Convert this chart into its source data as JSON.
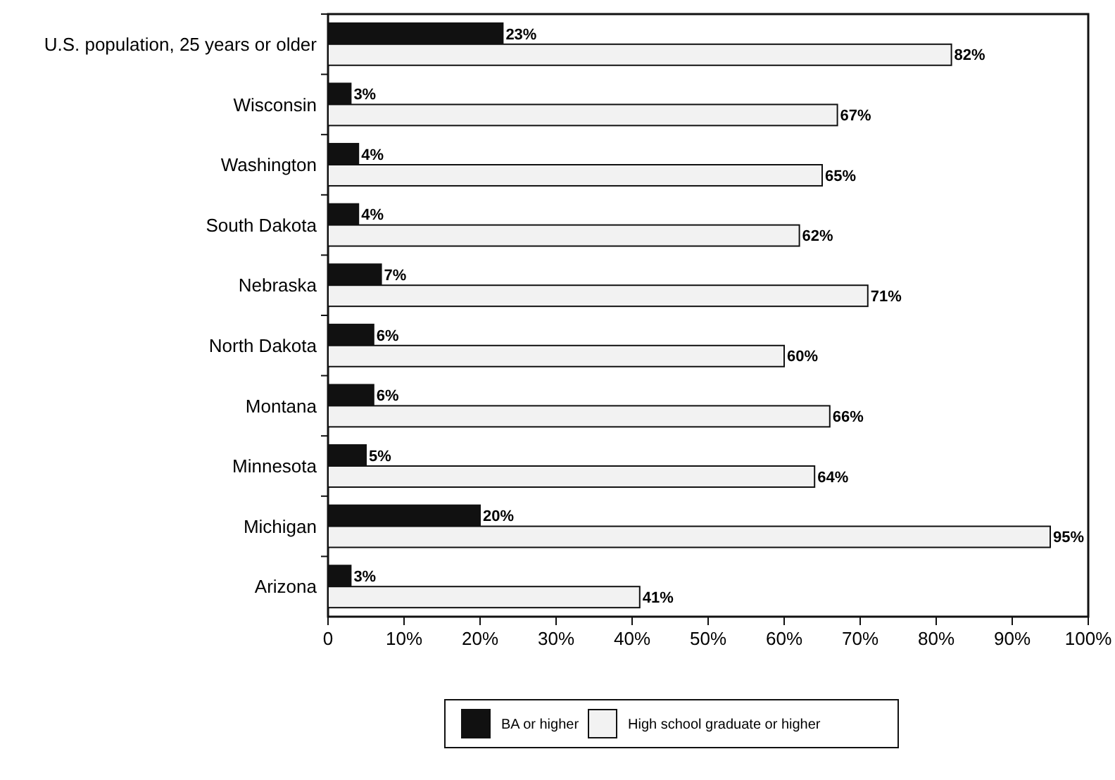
{
  "chart_data": {
    "type": "bar",
    "orientation": "horizontal",
    "categories": [
      "U.S. population, 25 years or older",
      "Wisconsin",
      "Washington",
      "South Dakota",
      "Nebraska",
      "North Dakota",
      "Montana",
      "Minnesota",
      "Michigan",
      "Arizona"
    ],
    "series": [
      {
        "name": "BA or higher",
        "color": "#111111",
        "values": [
          23,
          3,
          4,
          4,
          7,
          6,
          6,
          5,
          20,
          3
        ],
        "value_labels": [
          "23%",
          "3%",
          "4%",
          "4%",
          "7%",
          "6%",
          "6%",
          "5%",
          "20%",
          "3%"
        ]
      },
      {
        "name": "High school graduate or higher",
        "color": "#f2f2f2",
        "values": [
          82,
          67,
          65,
          62,
          71,
          60,
          66,
          64,
          95,
          41
        ],
        "value_labels": [
          "82%",
          "67%",
          "65%",
          "62%",
          "71%",
          "60%",
          "66%",
          "64%",
          "95%",
          "41%"
        ]
      }
    ],
    "xlim": [
      0,
      100
    ],
    "xticks": [
      0,
      {
        "value": 10,
        "label": "10%"
      },
      {
        "value": 20,
        "label": "20%"
      },
      {
        "value": 30,
        "label": "30%"
      },
      {
        "value": 40,
        "label": "40%"
      },
      {
        "value": 50,
        "label": "50%"
      },
      {
        "value": 60,
        "label": "60%"
      },
      {
        "value": 70,
        "label": "70%"
      },
      {
        "value": 80,
        "label": "80%"
      },
      {
        "value": 90,
        "label": "90%"
      },
      {
        "value": 100,
        "label": "100%"
      }
    ],
    "grid": false,
    "legend": "bottom"
  }
}
